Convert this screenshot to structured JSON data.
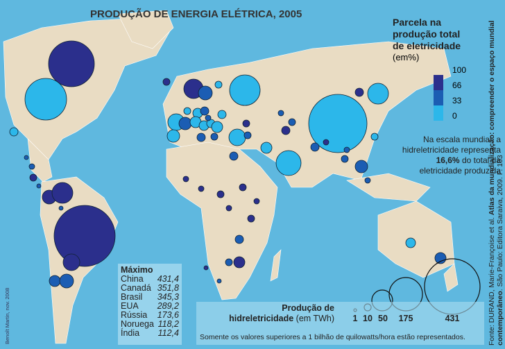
{
  "title": "PRODUÇÃO DE ENERGIA ELÉTRICA, 2005",
  "share_legend": {
    "heading": [
      "Parcela na",
      "produção total",
      "de eletricidade"
    ],
    "unit": "(em%)",
    "ticks": [
      "100",
      "66",
      "33",
      "0"
    ],
    "colors": {
      "high": "#2b2f8c",
      "mid": "#1b5db3",
      "low": "#2cb7ea"
    }
  },
  "note": {
    "pre": "Na escala mundial, a hidreletricidade representa ",
    "value": "16,6%",
    "post": " do total da eletricidade produzida"
  },
  "maximo": {
    "heading": "Máximo",
    "rows": [
      {
        "country": "China",
        "value": "431,4"
      },
      {
        "country": "Canadá",
        "value": "351,8"
      },
      {
        "country": "Brasil",
        "value": "345,3"
      },
      {
        "country": "EUA",
        "value": "289,2"
      },
      {
        "country": "Rússia",
        "value": "173,6"
      },
      {
        "country": "Noruega",
        "value": "118,2"
      },
      {
        "country": "Índia",
        "value": "112,4"
      }
    ]
  },
  "size_legend": {
    "line1": "Produção de",
    "line2_bold": "hidreletricidade",
    "line2_rest": " (em TWh)",
    "values": [
      "1",
      "10",
      "50",
      "175",
      "431"
    ],
    "note": "Somente os valores superiores a 1 bilhão de quilowatts/hora estão representados."
  },
  "source": {
    "pre": "Fonte: DURAND, Marie-Françoise et al. ",
    "title": "Atlas da mundialização: compreender o espaço mundial contemporâneo",
    "post": ". São Paulo: Editora Saraiva, 2009. P. 103"
  },
  "signature": "Benoît Martin, nov. 2008"
}
